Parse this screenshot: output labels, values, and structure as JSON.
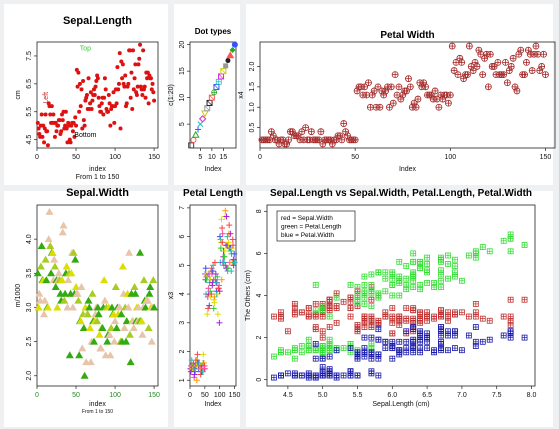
{
  "colors": {
    "background": "#eef0f2",
    "panel": "#ffffff",
    "red": "#dd1111",
    "darkred": "#a52a2a",
    "green_bright": "#33cc33",
    "green_dark": "#228b22",
    "yellow": "#dddd00",
    "tan": "#e8c4aa",
    "blue": "#1a1aaa"
  },
  "chart_data": [
    {
      "id": "sepal_length",
      "type": "scatter",
      "title": "Sepal.Length",
      "xlabel": "index",
      "xlabel2": "From 1 to 150",
      "ylabel": "cm",
      "xlim": [
        0,
        155
      ],
      "ylim": [
        4.2,
        8.0
      ],
      "xticks": [
        0,
        50,
        100,
        150
      ],
      "xtick_labels": [
        "0",
        "50",
        "100",
        "150"
      ],
      "yticks": [
        4.5,
        5.5,
        6.5,
        7.5
      ],
      "ytick_labels": [
        "4.5",
        "5.5",
        "6.5",
        "7.5"
      ],
      "annotations": [
        {
          "text": "Top",
          "x": 62,
          "y": 7.7,
          "color": "#33cc33"
        },
        {
          "text": "Left",
          "x": 14,
          "y": 6.0,
          "color": "#cc2222",
          "rotate": true
        },
        {
          "text": "Bottom",
          "x": 62,
          "y": 4.6,
          "color": "#000000"
        }
      ],
      "marker": "dot",
      "marker_color": "#dd1111",
      "series": [
        {
          "values": [
            5.1,
            4.9,
            4.7,
            4.6,
            5.0,
            5.4,
            4.6,
            5.0,
            4.4,
            4.9,
            5.4,
            4.8,
            4.8,
            4.3,
            5.8,
            5.7,
            5.4,
            5.1,
            5.7,
            5.1,
            5.4,
            5.1,
            4.6,
            5.1,
            4.8,
            5.0,
            5.0,
            5.2,
            5.2,
            4.7,
            4.8,
            5.4,
            5.2,
            5.5,
            4.9,
            5.0,
            5.5,
            4.9,
            4.4,
            5.1,
            5.0,
            4.5,
            4.4,
            5.0,
            5.1,
            4.8,
            5.1,
            4.6,
            5.3,
            5.0,
            7.0,
            6.4,
            6.9,
            5.5,
            6.5,
            5.7,
            6.3,
            4.9,
            6.6,
            5.2,
            5.0,
            5.9,
            6.0,
            6.1,
            5.6,
            6.7,
            5.6,
            5.8,
            6.2,
            5.6,
            5.9,
            6.1,
            6.3,
            6.1,
            6.4,
            6.6,
            6.8,
            6.7,
            6.0,
            5.7,
            5.5,
            5.5,
            5.8,
            6.0,
            5.4,
            6.0,
            6.7,
            6.3,
            5.6,
            5.5,
            5.5,
            6.1,
            5.8,
            5.0,
            5.6,
            5.7,
            5.7,
            6.2,
            5.1,
            5.7,
            6.3,
            5.8,
            7.1,
            6.3,
            6.5,
            7.6,
            4.9,
            7.3,
            6.7,
            7.2,
            6.5,
            6.4,
            6.8,
            5.7,
            5.8,
            6.4,
            6.5,
            7.7,
            7.7,
            6.0,
            6.9,
            5.6,
            7.7,
            6.3,
            6.7,
            7.2,
            6.2,
            6.1,
            6.4,
            7.2,
            7.4,
            7.9,
            6.4,
            6.3,
            6.1,
            7.7,
            6.3,
            6.4,
            6.0,
            6.9,
            6.7,
            6.9,
            5.8,
            6.8,
            6.7,
            6.7,
            6.3,
            6.5,
            6.2,
            5.9
          ]
        }
      ]
    },
    {
      "id": "dot_types",
      "type": "scatter",
      "title": "Dot types",
      "xlabel": "Index",
      "ylabel": "c(1:20)",
      "xlim": [
        0.5,
        20.5
      ],
      "ylim": [
        0.5,
        20.5
      ],
      "xticks": [
        5,
        10,
        15
      ],
      "xtick_labels": [
        "5",
        "10",
        "15"
      ],
      "yticks": [
        5,
        10,
        15,
        20
      ],
      "ytick_labels": [
        "5",
        "10",
        "15",
        "20"
      ],
      "values": [
        1,
        2,
        3,
        4,
        5,
        6,
        7,
        8,
        9,
        10,
        11,
        12,
        13,
        14,
        15,
        16,
        17,
        18,
        19,
        20
      ],
      "marker_shapes": [
        "square",
        "circle",
        "triangle",
        "plus",
        "cross",
        "diamond",
        "tri_down",
        "square_x",
        "star",
        "diamond_plus",
        "circle_plus",
        "tri_updown",
        "square_plus",
        "circle_x",
        "triangle_square",
        "filled_square",
        "filled_circle",
        "filled_triangle",
        "filled_diamond",
        "filled_circle_large"
      ],
      "marker_colors": [
        "#444444",
        "#ff5555",
        "#22aa22",
        "#3355ff",
        "#22bbbb",
        "#dd22dd",
        "#cccc00",
        "#999999",
        "#222222",
        "#ff5555",
        "#22aa22",
        "#3355ff",
        "#22bbbb",
        "#dd22dd",
        "#cccc00",
        "#999999",
        "#222222",
        "#ff5555",
        "#22aa22",
        "#3355ff"
      ]
    },
    {
      "id": "petal_width",
      "type": "scatter",
      "title": "Petal Width",
      "xlabel": "Index",
      "ylabel": "x4",
      "xlim": [
        0,
        155
      ],
      "ylim": [
        0,
        2.6
      ],
      "xticks": [
        0,
        50,
        100,
        150
      ],
      "xtick_labels": [
        "0",
        "50",
        "100",
        "150"
      ],
      "yticks": [
        0.5,
        1.0,
        1.5,
        2.0
      ],
      "ytick_labels": [
        "0.5",
        "1.0",
        "1.5",
        "2.0"
      ],
      "marker": "circle_plus",
      "marker_color": "#a52a2a",
      "series": [
        {
          "values": [
            0.2,
            0.2,
            0.2,
            0.2,
            0.2,
            0.4,
            0.3,
            0.2,
            0.2,
            0.1,
            0.2,
            0.2,
            0.1,
            0.1,
            0.2,
            0.4,
            0.4,
            0.3,
            0.3,
            0.3,
            0.2,
            0.4,
            0.2,
            0.5,
            0.2,
            0.2,
            0.4,
            0.2,
            0.2,
            0.2,
            0.2,
            0.4,
            0.1,
            0.2,
            0.2,
            0.2,
            0.2,
            0.1,
            0.2,
            0.2,
            0.3,
            0.3,
            0.2,
            0.6,
            0.4,
            0.3,
            0.2,
            0.2,
            0.2,
            0.2,
            1.4,
            1.5,
            1.5,
            1.3,
            1.5,
            1.3,
            1.6,
            1.0,
            1.3,
            1.4,
            1.0,
            1.5,
            1.0,
            1.4,
            1.3,
            1.4,
            1.5,
            1.0,
            1.5,
            1.1,
            1.8,
            1.3,
            1.5,
            1.2,
            1.3,
            1.4,
            1.4,
            1.7,
            1.5,
            1.0,
            1.1,
            1.0,
            1.2,
            1.6,
            1.5,
            1.6,
            1.5,
            1.3,
            1.3,
            1.3,
            1.2,
            1.4,
            1.2,
            1.0,
            1.3,
            1.2,
            1.3,
            1.3,
            1.1,
            1.3,
            2.5,
            1.9,
            2.1,
            1.8,
            2.2,
            2.1,
            1.7,
            1.8,
            1.8,
            2.5,
            2.0,
            1.9,
            2.1,
            2.0,
            2.4,
            2.3,
            1.8,
            2.2,
            2.3,
            1.5,
            2.3,
            2.0,
            2.0,
            1.8,
            2.1,
            1.8,
            1.8,
            1.8,
            2.1,
            1.6,
            1.9,
            2.0,
            2.2,
            1.5,
            1.4,
            2.3,
            2.4,
            1.8,
            1.8,
            2.1,
            2.4,
            2.3,
            1.9,
            2.3,
            2.5,
            2.3,
            1.9,
            2.0,
            2.3,
            1.8
          ]
        }
      ]
    },
    {
      "id": "sepal_width",
      "type": "scatter",
      "title": "Sepal.Width",
      "xlabel": "index",
      "xlabel2": "From 1 to 150",
      "ylabel": "m/1000",
      "xlim": [
        0,
        155
      ],
      "ylim": [
        1.85,
        4.5
      ],
      "xticks": [
        0,
        50,
        100,
        150
      ],
      "xtick_labels": [
        "0",
        "50",
        "100",
        "150"
      ],
      "xtick_colors": [
        "#228b22",
        "#228b22",
        "#228b22",
        "#228b22"
      ],
      "yticks": [
        2.0,
        2.5,
        3.0,
        3.5,
        4.0
      ],
      "ytick_labels": [
        "2.0",
        "2.5",
        "3.0",
        "3.5",
        "4.0"
      ],
      "marker": "filled_triangle",
      "point_palette": [
        "#33aa11",
        "#a8cc22",
        "#e8c4aa",
        "#dddd00"
      ],
      "series": [
        {
          "values": [
            3.5,
            3.0,
            3.2,
            3.1,
            3.6,
            3.9,
            3.4,
            3.4,
            2.9,
            3.1,
            3.7,
            3.4,
            3.0,
            3.0,
            4.0,
            4.4,
            3.9,
            3.5,
            3.8,
            3.8,
            3.4,
            3.7,
            3.6,
            3.3,
            3.4,
            3.0,
            3.4,
            3.5,
            3.4,
            3.2,
            3.1,
            3.4,
            4.1,
            4.2,
            3.1,
            3.2,
            3.5,
            3.6,
            3.0,
            3.4,
            3.5,
            2.3,
            3.2,
            3.5,
            3.8,
            3.0,
            3.8,
            3.2,
            3.7,
            3.3,
            3.2,
            3.2,
            3.1,
            2.3,
            2.8,
            2.8,
            3.3,
            2.4,
            2.9,
            2.7,
            2.0,
            3.0,
            2.2,
            2.9,
            2.9,
            3.1,
            3.0,
            2.7,
            2.2,
            2.5,
            3.2,
            2.8,
            2.5,
            2.8,
            2.9,
            3.0,
            2.8,
            3.0,
            2.9,
            2.6,
            2.4,
            2.4,
            2.7,
            2.7,
            3.0,
            3.4,
            3.1,
            2.3,
            3.0,
            2.5,
            2.6,
            3.0,
            2.6,
            2.3,
            2.7,
            3.0,
            2.9,
            2.9,
            2.5,
            2.8,
            3.3,
            2.7,
            3.0,
            2.9,
            3.0,
            3.0,
            2.5,
            2.9,
            2.5,
            3.6,
            3.2,
            2.7,
            3.0,
            2.5,
            2.8,
            3.2,
            3.0,
            3.8,
            2.6,
            2.2,
            3.2,
            2.8,
            2.8,
            2.7,
            3.3,
            3.2,
            2.8,
            3.0,
            2.8,
            3.0,
            2.8,
            3.8,
            2.8,
            2.8,
            2.6,
            3.0,
            3.4,
            3.1,
            3.0,
            3.1,
            3.1,
            3.1,
            2.7,
            3.2,
            3.3,
            3.0,
            2.5,
            3.0,
            3.4,
            3.0
          ]
        }
      ]
    },
    {
      "id": "petal_length",
      "type": "scatter",
      "title": "Petal Length",
      "xlabel": "Index",
      "ylabel": "x3",
      "xlim": [
        0,
        155
      ],
      "ylim": [
        0.8,
        7.1
      ],
      "xticks": [
        0,
        50,
        100,
        150
      ],
      "xtick_labels": [
        "0",
        "50",
        "100",
        "150"
      ],
      "yticks": [
        1,
        2,
        3,
        4,
        5,
        6,
        7
      ],
      "ytick_labels": [
        "1",
        "2",
        "3",
        "4",
        "5",
        "6",
        "7"
      ],
      "marker": "plus",
      "point_palette": [
        "#ff4444",
        "#ff9900",
        "#dddd00",
        "#33cc33",
        "#22bbbb",
        "#3355ff",
        "#aa22dd",
        "#ff44aa"
      ],
      "series": [
        {
          "values": [
            1.4,
            1.4,
            1.3,
            1.5,
            1.4,
            1.7,
            1.4,
            1.5,
            1.4,
            1.5,
            1.5,
            1.6,
            1.4,
            1.1,
            1.2,
            1.5,
            1.3,
            1.4,
            1.7,
            1.5,
            1.7,
            1.5,
            1.0,
            1.7,
            1.9,
            1.6,
            1.6,
            1.5,
            1.4,
            1.6,
            1.6,
            1.5,
            1.5,
            1.4,
            1.5,
            1.2,
            1.3,
            1.4,
            1.3,
            1.5,
            1.3,
            1.3,
            1.3,
            1.6,
            1.9,
            1.4,
            1.6,
            1.4,
            1.5,
            1.4,
            4.7,
            4.5,
            4.9,
            4.0,
            4.6,
            4.5,
            4.7,
            3.3,
            4.6,
            3.9,
            3.5,
            4.2,
            4.0,
            4.7,
            3.6,
            4.4,
            4.5,
            4.1,
            4.5,
            3.9,
            4.8,
            4.0,
            4.9,
            4.7,
            4.3,
            4.4,
            4.8,
            5.0,
            4.5,
            3.5,
            3.8,
            3.7,
            3.9,
            5.1,
            4.5,
            4.5,
            4.7,
            4.4,
            4.1,
            4.0,
            4.4,
            4.6,
            4.0,
            3.3,
            4.2,
            4.2,
            4.2,
            4.3,
            3.0,
            4.1,
            6.0,
            5.1,
            5.9,
            5.6,
            5.8,
            6.6,
            4.5,
            6.3,
            5.8,
            6.1,
            5.1,
            5.3,
            5.5,
            5.0,
            5.1,
            5.3,
            5.5,
            6.7,
            6.9,
            5.0,
            5.7,
            4.9,
            6.7,
            4.9,
            5.7,
            6.0,
            4.8,
            4.9,
            5.6,
            5.8,
            6.1,
            6.4,
            5.6,
            5.1,
            5.6,
            6.1,
            5.6,
            5.5,
            4.8,
            5.4,
            5.6,
            5.1,
            5.1,
            5.9,
            5.7,
            5.2,
            5.0,
            5.2,
            5.4,
            5.1
          ]
        }
      ]
    },
    {
      "id": "multi",
      "type": "scatter",
      "title": "Sepal.Length vs Sepal.Width, Petal.Length, Petal.Width",
      "xlabel": "Sepal.Length (cm)",
      "ylabel": "The Others (cm)",
      "xlim": [
        4.2,
        8.05
      ],
      "ylim": [
        -0.3,
        8.3
      ],
      "xticks": [
        4.5,
        5.0,
        5.5,
        6.0,
        6.5,
        7.0,
        7.5,
        8.0
      ],
      "xtick_labels": [
        "4.5",
        "5.0",
        "5.5",
        "6.0",
        "6.5",
        "7.0",
        "7.5",
        "8.0"
      ],
      "yticks": [
        0,
        2,
        4,
        6,
        8
      ],
      "ytick_labels": [
        "0",
        "2",
        "4",
        "6",
        "8"
      ],
      "legend": [
        "red = Sepal.Width",
        "green = Petal.Length",
        "blue = Petal.Width"
      ],
      "legend_position": "top-left",
      "marker": "square_plus",
      "series": [
        {
          "color": "#c03030",
          "ref": "Sepal.Width"
        },
        {
          "color": "#33dd33",
          "ref": "Petal.Length"
        },
        {
          "color": "#1a1aaa",
          "ref": "Petal.Width"
        }
      ]
    }
  ]
}
